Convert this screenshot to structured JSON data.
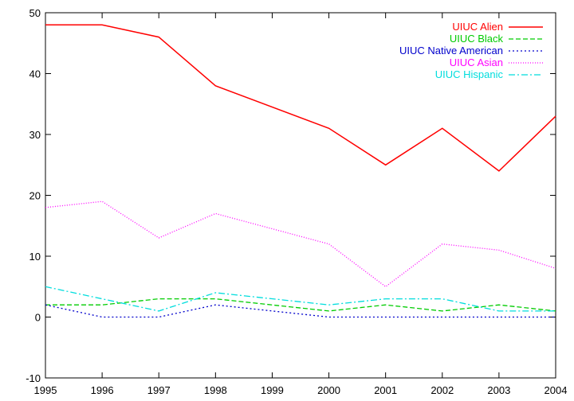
{
  "chart_data": {
    "type": "line",
    "title": "",
    "xlabel": "",
    "ylabel": "",
    "x": [
      1995,
      1996,
      1997,
      1998,
      1999,
      2000,
      2001,
      2002,
      2003,
      2004
    ],
    "xlim": [
      1995,
      2004
    ],
    "ylim": [
      -10,
      50
    ],
    "x_ticks": [
      "1995",
      "1996",
      "1997",
      "1998",
      "1999",
      "2000",
      "2001",
      "2002",
      "2003",
      "2004"
    ],
    "y_ticks": [
      "-10",
      "0",
      "10",
      "20",
      "30",
      "40",
      "50"
    ],
    "grid": false,
    "legend_position": "top-right",
    "series": [
      {
        "name": "UIUC Alien",
        "color": "#ff0000",
        "dash": "solid",
        "values": [
          48,
          48,
          46,
          38,
          null,
          31,
          25,
          31,
          24,
          33
        ]
      },
      {
        "name": "UIUC Black",
        "color": "#00cc00",
        "dash": "dashed",
        "values": [
          2,
          2,
          3,
          3,
          null,
          1,
          2,
          1,
          2,
          1
        ]
      },
      {
        "name": "UIUC Native American",
        "color": "#0000cc",
        "dash": "dotted",
        "values": [
          2,
          0,
          0,
          2,
          null,
          0,
          0,
          0,
          0,
          0
        ]
      },
      {
        "name": "UIUC Asian",
        "color": "#ff00ff",
        "dash": "fine-dotted",
        "values": [
          18,
          19,
          13,
          17,
          null,
          12,
          5,
          12,
          11,
          8
        ]
      },
      {
        "name": "UIUC Hispanic",
        "color": "#00dddd",
        "dash": "dash-dot",
        "values": [
          5,
          3,
          1,
          4,
          null,
          2,
          3,
          3,
          1,
          1
        ]
      }
    ]
  }
}
